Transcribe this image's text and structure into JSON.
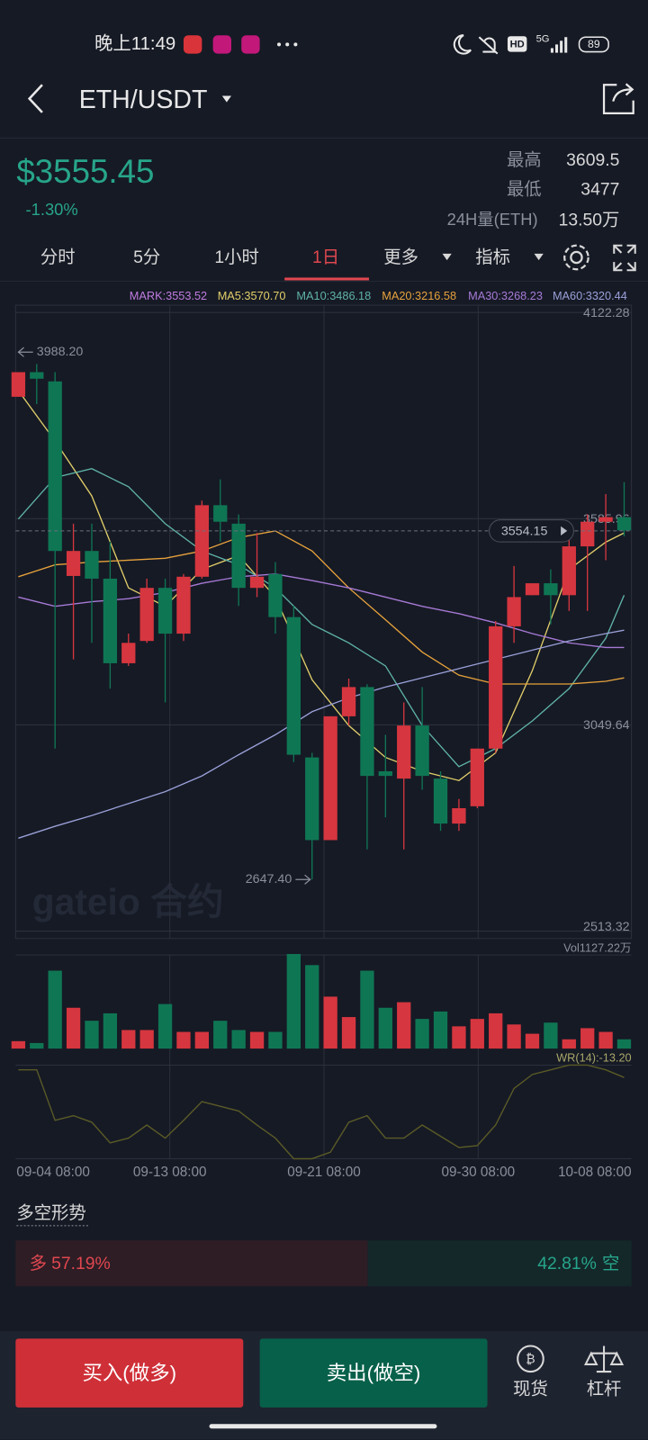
{
  "status_bar": {
    "time": "晚上11:49",
    "hd": "HD",
    "network": "5G",
    "battery": "89"
  },
  "header": {
    "pair": "ETH/USDT"
  },
  "ticker": {
    "price": "$3555.45",
    "change": "-1.30%",
    "high_label": "最高",
    "high": "3609.5",
    "low_label": "最低",
    "low": "3477",
    "volume_label": "24H量(ETH)",
    "volume": "13.50万"
  },
  "tabs": [
    "分时",
    "5分",
    "1小时",
    "1日",
    "更多",
    "指标"
  ],
  "indicators": [
    {
      "text": "MARK:3553.52",
      "color": "#c07ce0"
    },
    {
      "text": "MA5:3570.70",
      "color": "#e2cf6a"
    },
    {
      "text": "MA10:3486.18",
      "color": "#5fb3a8"
    },
    {
      "text": "MA20:3216.58",
      "color": "#e6a23c"
    },
    {
      "text": "MA30:3268.23",
      "color": "#a77ad6"
    },
    {
      "text": "MA60:3320.44",
      "color": "#9aa0d8"
    }
  ],
  "watermark": "gateio 合约",
  "chart_data": {
    "type": "candlestick",
    "ylim": [
      2513.32,
      4122.28
    ],
    "yticks": [
      4122.28,
      3585.96,
      3049.64,
      2513.32
    ],
    "xticks": [
      {
        "value": 0,
        "label": "09-04 08:00"
      },
      {
        "value": 8.25,
        "label": "09-13 08:00"
      },
      {
        "value": 16.65,
        "label": "09-21 08:00"
      },
      {
        "value": 25.05,
        "label": "09-30 08:00"
      },
      {
        "value": 33,
        "label": "10-08 08:00"
      }
    ],
    "up_color": "#d6363f",
    "down_color": "#0f7654",
    "open": [
      3903,
      3967,
      3943,
      3437,
      3502,
      3430,
      3210,
      3268,
      3406,
      3287,
      3435,
      3621,
      3573,
      3406,
      3442,
      3330,
      2965,
      2750,
      3072,
      3148,
      2929,
      2910,
      3048,
      2910,
      2793,
      2838,
      2988,
      3306,
      3387,
      3418,
      3387,
      3514,
      3578,
      3590
    ],
    "close": [
      3967,
      3950,
      3502,
      3502,
      3430,
      3210,
      3263,
      3406,
      3287,
      3435,
      3621,
      3578,
      3406,
      3435,
      3330,
      2972,
      2750,
      3072,
      3148,
      2917,
      2917,
      3048,
      2917,
      2793,
      2833,
      2988,
      3306,
      3382,
      3418,
      3387,
      3514,
      3578,
      3590,
      3555.45
    ],
    "high": [
      3967,
      3988.2,
      3967,
      3573,
      3573,
      3526,
      3287,
      3430,
      3430,
      3442,
      3633,
      3688,
      3597,
      3549,
      3473,
      3359,
      2977,
      3072,
      3170,
      3155,
      3024,
      3108,
      3148,
      2929,
      2857,
      2988,
      3320,
      3463,
      3418,
      3454,
      3549,
      3597,
      3650,
      3681
    ],
    "low": [
      3903,
      3884,
      2988,
      3220,
      3263,
      3144,
      3203,
      3263,
      3108,
      3268,
      3430,
      3526,
      3359,
      3382,
      3287,
      2953,
      2647.4,
      2750,
      3048,
      2726,
      2809,
      2726,
      2881,
      2774,
      2774,
      2833,
      2977,
      3263,
      3387,
      3311,
      3346,
      3346,
      3478,
      3540
    ],
    "ma_x": [
      0,
      2,
      4,
      6,
      8,
      10,
      12,
      14,
      16,
      18,
      20,
      22,
      24,
      26,
      28,
      30,
      32,
      33
    ],
    "series": [
      {
        "color": "#e2cf6a",
        "values": [
          3919,
          3788,
          3645,
          3406,
          3358,
          3454,
          3490,
          3382,
          3167,
          3048,
          2965,
          2929,
          2905,
          2977,
          3191,
          3454,
          3525,
          3549
        ]
      },
      {
        "color": "#5fb3a8",
        "values": [
          3585,
          3693,
          3716,
          3669,
          3573,
          3502,
          3466,
          3406,
          3311,
          3263,
          3203,
          3048,
          2941,
          2988,
          3060,
          3144,
          3275,
          3387
        ]
      },
      {
        "color": "#e6a23c",
        "values": [
          3435,
          3466,
          3473,
          3478,
          3483,
          3502,
          3537,
          3554,
          3502,
          3406,
          3323,
          3239,
          3179,
          3156,
          3156,
          3156,
          3163,
          3172
        ]
      },
      {
        "color": "#a77ad6",
        "values": [
          3382,
          3358,
          3370,
          3378,
          3394,
          3418,
          3435,
          3442,
          3425,
          3406,
          3382,
          3358,
          3339,
          3315,
          3287,
          3263,
          3251,
          3251
        ]
      },
      {
        "color": "#9aa0d8",
        "values": [
          2755,
          2786,
          2814,
          2845,
          2876,
          2917,
          2972,
          3024,
          3084,
          3120,
          3148,
          3172,
          3196,
          3220,
          3244,
          3268,
          3287,
          3296
        ]
      }
    ],
    "last_price": 3554.15,
    "annotations": [
      {
        "index": 1,
        "value": 3988.2,
        "label": "3988.20"
      },
      {
        "index": 16,
        "value": 2647.4,
        "label": "2647.40"
      }
    ],
    "volume": {
      "label": "Vol1127.22万",
      "ylim": [
        0,
        11600
      ],
      "values": [
        902,
        676,
        9468,
        4960,
        3382,
        4283,
        2254,
        2254,
        5411,
        2029,
        2029,
        3382,
        2254,
        2029,
        2029,
        11497,
        10145,
        6312,
        3832,
        9468,
        4960,
        5636,
        3607,
        4509,
        2705,
        3607,
        4283,
        2931,
        1804,
        3156,
        1127,
        2480,
        2029,
        1127.22
      ]
    },
    "wr": {
      "label": "WR(14):-13.20",
      "color": "#5a5a26",
      "ylim": [
        -100,
        0
      ],
      "values": [
        -5,
        -5,
        -59,
        -54,
        -61,
        -83,
        -78,
        -64,
        -78,
        -59,
        -39,
        -44,
        -49,
        -64,
        -78,
        -100,
        -100,
        -93,
        -61,
        -54,
        -78,
        -78,
        -64,
        -76,
        -88,
        -86,
        -64,
        -25,
        -10,
        -5,
        0,
        0,
        -5,
        -13.2
      ]
    }
  },
  "sentiment": {
    "title": "多空形势",
    "categories": [
      "多",
      "空"
    ],
    "values": [
      57.19,
      42.81
    ],
    "value_labels": [
      "57.19%",
      "42.81%"
    ]
  },
  "buttons": {
    "buy": "买入(做多)",
    "sell": "卖出(做空)",
    "spot": "现货",
    "leverage": "杠杆"
  }
}
